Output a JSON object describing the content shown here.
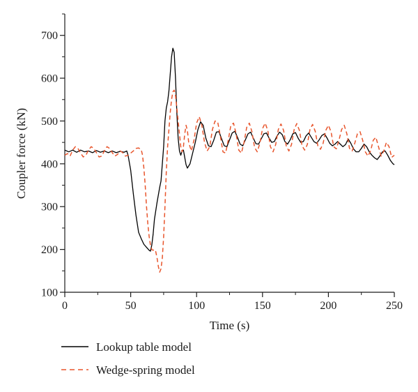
{
  "chart_data": {
    "type": "line",
    "title": "",
    "xlabel": "Time (s)",
    "ylabel": "Coupler force (kN)",
    "xlim": [
      0,
      250
    ],
    "ylim": [
      100,
      750
    ],
    "x_ticks": [
      0,
      50,
      100,
      150,
      200,
      250
    ],
    "y_ticks": [
      100,
      200,
      300,
      400,
      500,
      600,
      700
    ],
    "grid": false,
    "legend_position": "bottom-left, below plot",
    "series": [
      {
        "name": "Lookup table model",
        "color": "#000000",
        "style": "solid",
        "points": [
          [
            0,
            432
          ],
          [
            3,
            428
          ],
          [
            6,
            432
          ],
          [
            9,
            427
          ],
          [
            12,
            432
          ],
          [
            15,
            428
          ],
          [
            18,
            430
          ],
          [
            21,
            426
          ],
          [
            24,
            431
          ],
          [
            27,
            427
          ],
          [
            30,
            430
          ],
          [
            33,
            426
          ],
          [
            36,
            430
          ],
          [
            39,
            426
          ],
          [
            42,
            429
          ],
          [
            45,
            427
          ],
          [
            47,
            430
          ],
          [
            48,
            420
          ],
          [
            50,
            385
          ],
          [
            52,
            330
          ],
          [
            54,
            280
          ],
          [
            56,
            240
          ],
          [
            58,
            225
          ],
          [
            60,
            212
          ],
          [
            62,
            205
          ],
          [
            64,
            198
          ],
          [
            65,
            196
          ],
          [
            66,
            210
          ],
          [
            67,
            235
          ],
          [
            68,
            270
          ],
          [
            70,
            310
          ],
          [
            72,
            345
          ],
          [
            73,
            360
          ],
          [
            74,
            400
          ],
          [
            75,
            440
          ],
          [
            76,
            500
          ],
          [
            77,
            530
          ],
          [
            78,
            545
          ],
          [
            79,
            570
          ],
          [
            80,
            610
          ],
          [
            81,
            650
          ],
          [
            82,
            670
          ],
          [
            83,
            660
          ],
          [
            84,
            600
          ],
          [
            85,
            520
          ],
          [
            86,
            460
          ],
          [
            87,
            430
          ],
          [
            88,
            420
          ],
          [
            89,
            430
          ],
          [
            90,
            432
          ],
          [
            91,
            415
          ],
          [
            92,
            398
          ],
          [
            93,
            390
          ],
          [
            95,
            400
          ],
          [
            97,
            425
          ],
          [
            99,
            450
          ],
          [
            101,
            480
          ],
          [
            103,
            498
          ],
          [
            105,
            490
          ],
          [
            107,
            460
          ],
          [
            109,
            442
          ],
          [
            111,
            440
          ],
          [
            113,
            455
          ],
          [
            115,
            474
          ],
          [
            117,
            475
          ],
          [
            119,
            458
          ],
          [
            121,
            442
          ],
          [
            123,
            440
          ],
          [
            125,
            456
          ],
          [
            127,
            472
          ],
          [
            129,
            476
          ],
          [
            131,
            462
          ],
          [
            133,
            446
          ],
          [
            135,
            442
          ],
          [
            137,
            456
          ],
          [
            139,
            470
          ],
          [
            141,
            474
          ],
          [
            143,
            460
          ],
          [
            145,
            447
          ],
          [
            147,
            446
          ],
          [
            149,
            458
          ],
          [
            151,
            470
          ],
          [
            153,
            472
          ],
          [
            155,
            460
          ],
          [
            157,
            450
          ],
          [
            159,
            452
          ],
          [
            161,
            465
          ],
          [
            163,
            474
          ],
          [
            165,
            468
          ],
          [
            167,
            452
          ],
          [
            169,
            446
          ],
          [
            171,
            456
          ],
          [
            173,
            470
          ],
          [
            175,
            473
          ],
          [
            177,
            460
          ],
          [
            179,
            450
          ],
          [
            181,
            452
          ],
          [
            183,
            465
          ],
          [
            185,
            472
          ],
          [
            187,
            462
          ],
          [
            189,
            452
          ],
          [
            191,
            448
          ],
          [
            193,
            456
          ],
          [
            195,
            466
          ],
          [
            197,
            470
          ],
          [
            199,
            460
          ],
          [
            201,
            448
          ],
          [
            203,
            442
          ],
          [
            205,
            446
          ],
          [
            207,
            452
          ],
          [
            209,
            446
          ],
          [
            211,
            440
          ],
          [
            213,
            445
          ],
          [
            215,
            458
          ],
          [
            217,
            448
          ],
          [
            219,
            435
          ],
          [
            221,
            428
          ],
          [
            223,
            428
          ],
          [
            225,
            436
          ],
          [
            227,
            446
          ],
          [
            229,
            440
          ],
          [
            231,
            428
          ],
          [
            233,
            420
          ],
          [
            235,
            414
          ],
          [
            237,
            410
          ],
          [
            239,
            418
          ],
          [
            241,
            428
          ],
          [
            243,
            430
          ],
          [
            245,
            420
          ],
          [
            247,
            408
          ],
          [
            249,
            400
          ],
          [
            250,
            398
          ]
        ]
      },
      {
        "name": "Wedge-spring model",
        "color": "#e8552c",
        "style": "dashed",
        "points": [
          [
            0,
            420
          ],
          [
            2,
            424
          ],
          [
            4,
            418
          ],
          [
            6,
            432
          ],
          [
            8,
            440
          ],
          [
            10,
            436
          ],
          [
            12,
            425
          ],
          [
            14,
            416
          ],
          [
            16,
            420
          ],
          [
            18,
            432
          ],
          [
            20,
            440
          ],
          [
            22,
            436
          ],
          [
            24,
            426
          ],
          [
            26,
            416
          ],
          [
            28,
            418
          ],
          [
            30,
            430
          ],
          [
            32,
            440
          ],
          [
            34,
            436
          ],
          [
            36,
            426
          ],
          [
            38,
            418
          ],
          [
            40,
            422
          ],
          [
            42,
            430
          ],
          [
            44,
            426
          ],
          [
            46,
            418
          ],
          [
            48,
            420
          ],
          [
            50,
            425
          ],
          [
            52,
            430
          ],
          [
            54,
            436
          ],
          [
            56,
            437
          ],
          [
            58,
            433
          ],
          [
            59,
            420
          ],
          [
            60,
            390
          ],
          [
            61,
            350
          ],
          [
            62,
            300
          ],
          [
            63,
            260
          ],
          [
            64,
            230
          ],
          [
            65,
            210
          ],
          [
            66,
            200
          ],
          [
            67,
            198
          ],
          [
            68,
            200
          ],
          [
            69,
            195
          ],
          [
            70,
            180
          ],
          [
            71,
            160
          ],
          [
            72,
            147
          ],
          [
            73,
            155
          ],
          [
            74,
            180
          ],
          [
            75,
            230
          ],
          [
            76,
            300
          ],
          [
            77,
            380
          ],
          [
            78,
            440
          ],
          [
            79,
            480
          ],
          [
            80,
            520
          ],
          [
            81,
            550
          ],
          [
            82,
            568
          ],
          [
            83,
            572
          ],
          [
            84,
            560
          ],
          [
            85,
            530
          ],
          [
            86,
            500
          ],
          [
            87,
            470
          ],
          [
            88,
            440
          ],
          [
            89,
            428
          ],
          [
            90,
            440
          ],
          [
            91,
            470
          ],
          [
            92,
            490
          ],
          [
            93,
            478
          ],
          [
            94,
            450
          ],
          [
            96,
            430
          ],
          [
            98,
            455
          ],
          [
            100,
            495
          ],
          [
            102,
            510
          ],
          [
            104,
            490
          ],
          [
            106,
            450
          ],
          [
            108,
            430
          ],
          [
            110,
            440
          ],
          [
            112,
            480
          ],
          [
            114,
            500
          ],
          [
            116,
            498
          ],
          [
            118,
            465
          ],
          [
            120,
            428
          ],
          [
            122,
            425
          ],
          [
            124,
            455
          ],
          [
            126,
            490
          ],
          [
            128,
            495
          ],
          [
            130,
            470
          ],
          [
            132,
            432
          ],
          [
            134,
            425
          ],
          [
            136,
            450
          ],
          [
            138,
            485
          ],
          [
            140,
            495
          ],
          [
            142,
            475
          ],
          [
            144,
            438
          ],
          [
            146,
            428
          ],
          [
            148,
            448
          ],
          [
            150,
            482
          ],
          [
            152,
            495
          ],
          [
            154,
            478
          ],
          [
            156,
            440
          ],
          [
            158,
            428
          ],
          [
            160,
            445
          ],
          [
            162,
            480
          ],
          [
            164,
            493
          ],
          [
            166,
            478
          ],
          [
            168,
            442
          ],
          [
            170,
            430
          ],
          [
            172,
            445
          ],
          [
            174,
            480
          ],
          [
            176,
            494
          ],
          [
            178,
            478
          ],
          [
            180,
            442
          ],
          [
            182,
            432
          ],
          [
            184,
            445
          ],
          [
            186,
            480
          ],
          [
            188,
            492
          ],
          [
            190,
            476
          ],
          [
            192,
            442
          ],
          [
            194,
            434
          ],
          [
            196,
            448
          ],
          [
            198,
            478
          ],
          [
            200,
            490
          ],
          [
            202,
            475
          ],
          [
            204,
            440
          ],
          [
            206,
            435
          ],
          [
            208,
            455
          ],
          [
            210,
            480
          ],
          [
            212,
            490
          ],
          [
            214,
            470
          ],
          [
            216,
            436
          ],
          [
            218,
            430
          ],
          [
            220,
            448
          ],
          [
            222,
            470
          ],
          [
            224,
            475
          ],
          [
            226,
            455
          ],
          [
            228,
            428
          ],
          [
            230,
            418
          ],
          [
            232,
            430
          ],
          [
            234,
            455
          ],
          [
            236,
            462
          ],
          [
            238,
            440
          ],
          [
            240,
            418
          ],
          [
            242,
            430
          ],
          [
            244,
            450
          ],
          [
            246,
            440
          ],
          [
            248,
            415
          ],
          [
            250,
            420
          ]
        ]
      }
    ]
  }
}
